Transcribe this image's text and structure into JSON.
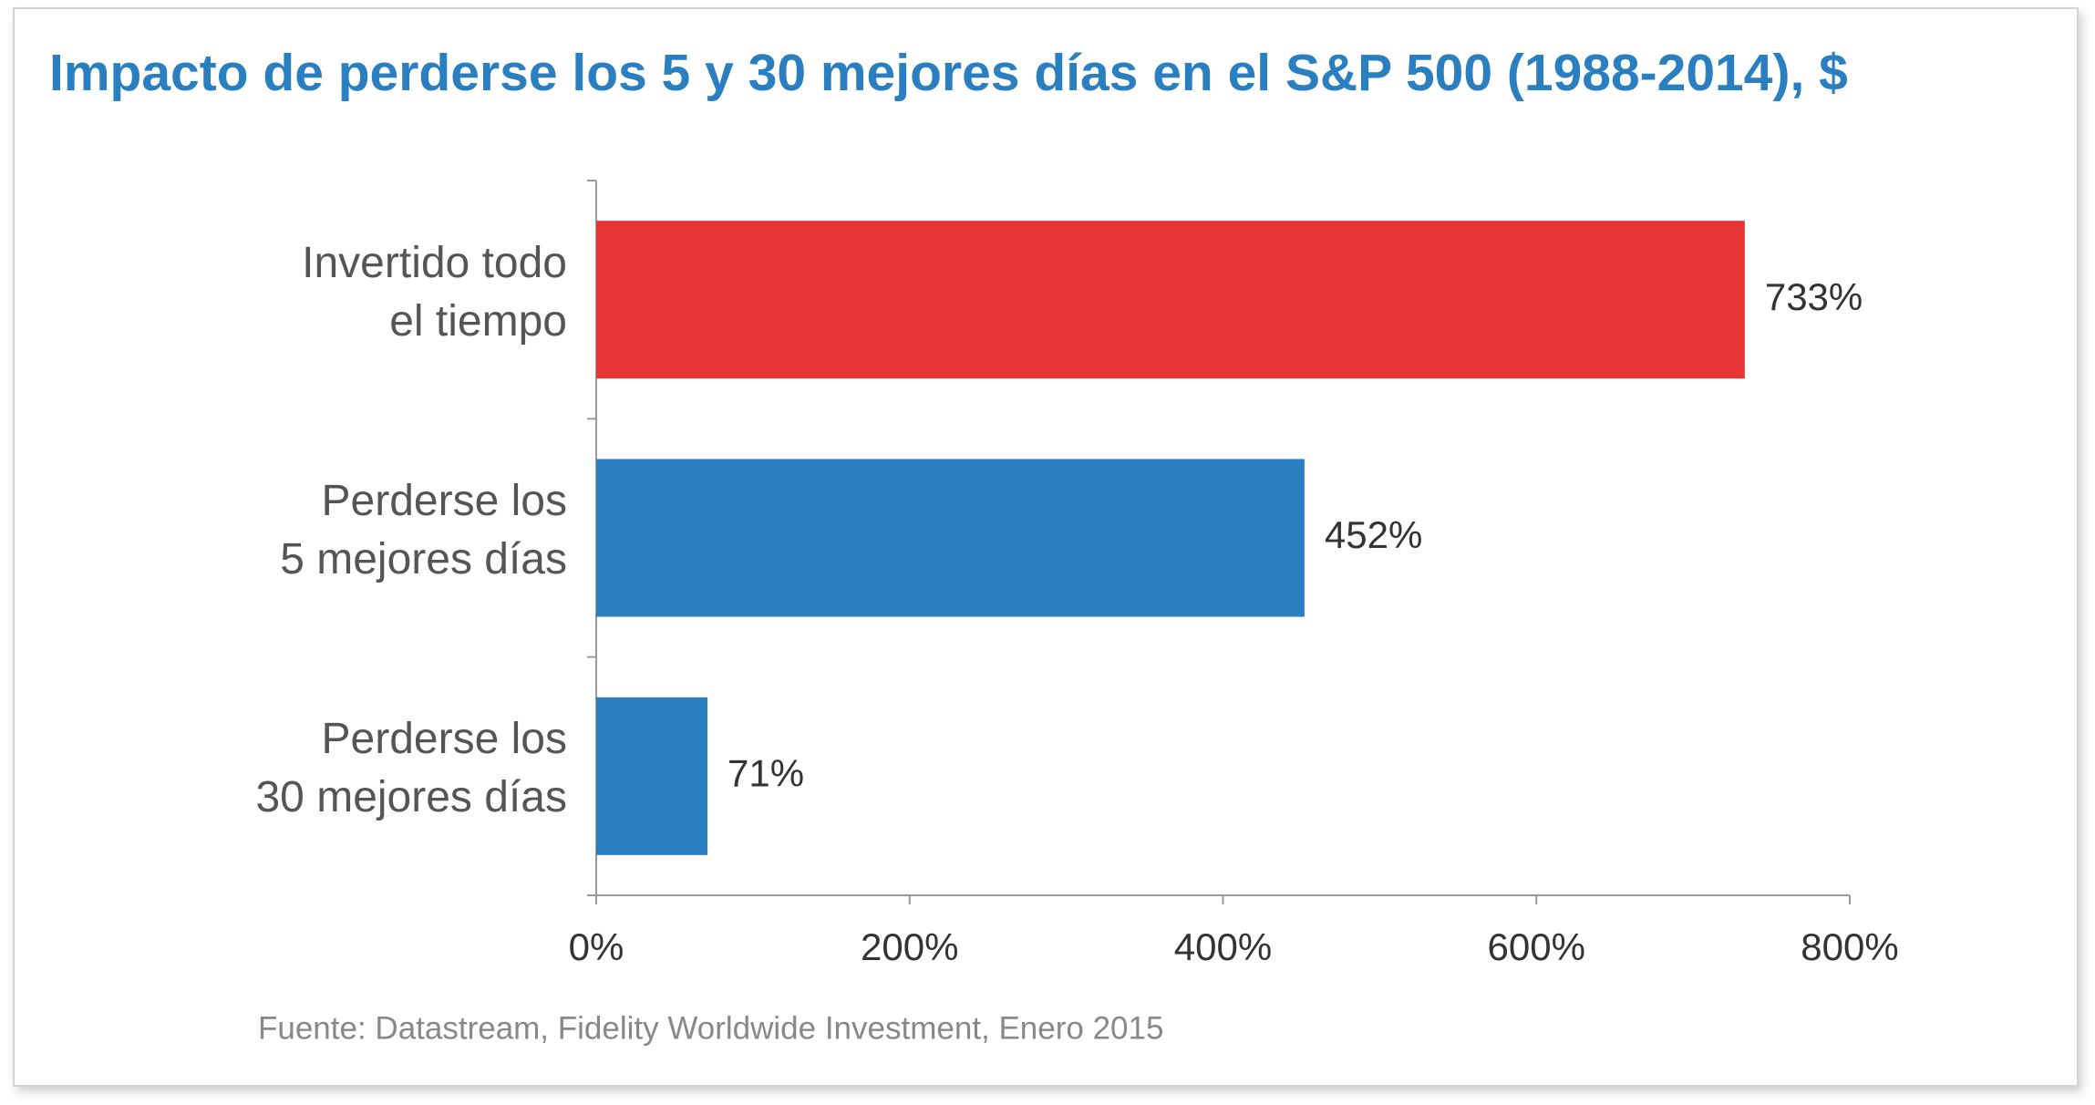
{
  "chart_data": {
    "type": "hbar",
    "title": "Impacto de perderse los 5 y 30 mejores días en el S&P 500 (1988-2014), $",
    "categories": [
      "Invertido todo\nel tiempo",
      "Perderse los\n5 mejores días",
      "Perderse los\n30 mejores días"
    ],
    "values": [
      733,
      452,
      71
    ],
    "value_labels": [
      "733%",
      "452%",
      "71%"
    ],
    "colors": [
      "#e83535",
      "#2a7fc1",
      "#2a7fc1"
    ],
    "xlim": [
      0,
      800
    ],
    "xticks": [
      {
        "value": 0,
        "label": "0%"
      },
      {
        "value": 200,
        "label": "200%"
      },
      {
        "value": 400,
        "label": "400%"
      },
      {
        "value": 600,
        "label": "600%"
      },
      {
        "value": 800,
        "label": "800%"
      }
    ],
    "source": "Fuente: Datastream, Fidelity Worldwide Investment, Enero 2015"
  }
}
